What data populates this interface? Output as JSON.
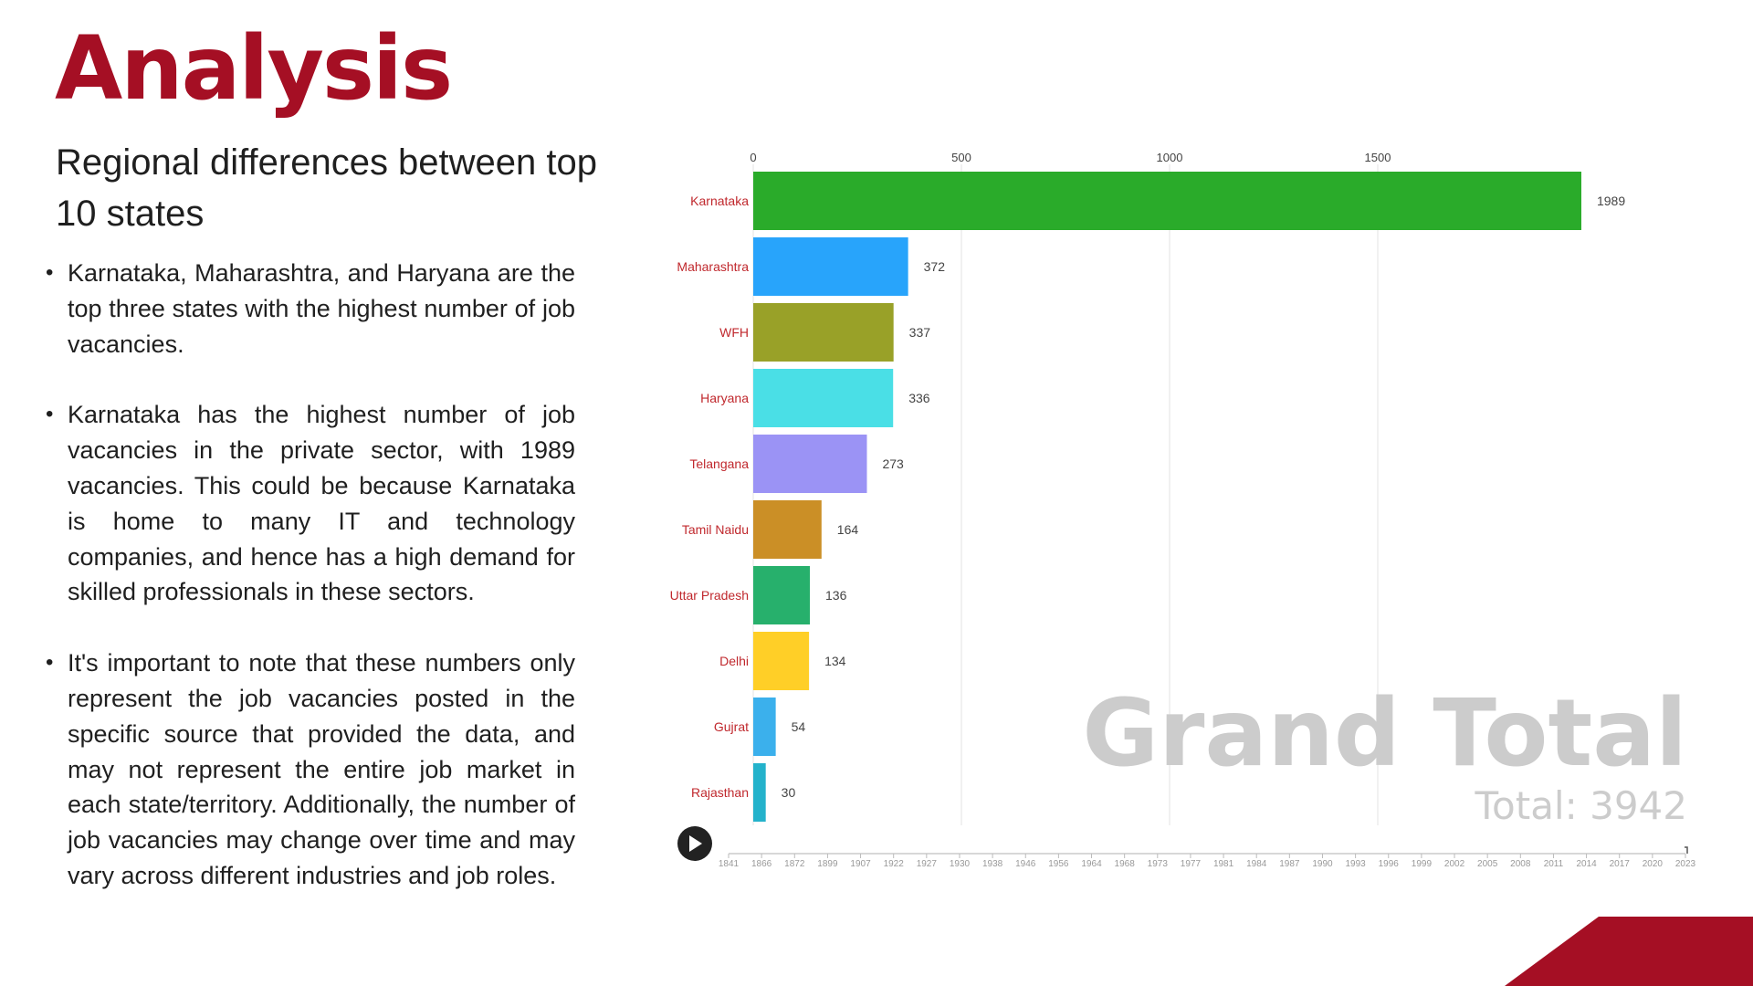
{
  "slide": {
    "title": "Analysis",
    "subtitle": "Regional differences between top 10 states",
    "bullets": [
      "Karnataka, Maharashtra, and Haryana are the top three states with the highest number of job vacancies.",
      "Karnataka has the highest number of job vacancies in the private sector, with 1989 vacancies. This could be because Karnataka is home to many IT and technology companies, and hence has a high demand for skilled professionals in these sectors.",
      "It's important to note that these numbers only represent the job vacancies posted in the specific source that provided the data, and may not represent the entire job market in each state/territory. Additionally, the number of job vacancies may change over time and may vary across different industries and job roles."
    ],
    "accent_color": "#a50f24"
  },
  "chart_data": {
    "type": "bar",
    "orientation": "horizontal",
    "categories": [
      "Karnataka",
      "Maharashtra",
      "WFH",
      "Haryana",
      "Telangana",
      "Tamil Naidu",
      "Uttar Pradesh",
      "Delhi",
      "Gujrat",
      "Rajasthan"
    ],
    "values": [
      1989,
      372,
      337,
      336,
      273,
      164,
      136,
      134,
      54,
      30
    ],
    "colors": [
      "#2aab2a",
      "#28a4fb",
      "#99a128",
      "#4adfe6",
      "#9b93f5",
      "#cb8f26",
      "#27b06c",
      "#ffcf27",
      "#3bb0ec",
      "#24b2cb"
    ],
    "xlim": [
      0,
      2000
    ],
    "xticks": [
      0,
      500,
      1000,
      1500
    ],
    "grid": true,
    "overlay_label": "Grand Total",
    "total_text": "Total: 3942",
    "timeline_years": [
      "1841",
      "1866",
      "1872",
      "1899",
      "1907",
      "1922",
      "1927",
      "1930",
      "1938",
      "1946",
      "1956",
      "1964",
      "1968",
      "1973",
      "1977",
      "1981",
      "1984",
      "1987",
      "1990",
      "1993",
      "1996",
      "1999",
      "2002",
      "2005",
      "2008",
      "2011",
      "2014",
      "2017",
      "2020",
      "2023"
    ]
  }
}
